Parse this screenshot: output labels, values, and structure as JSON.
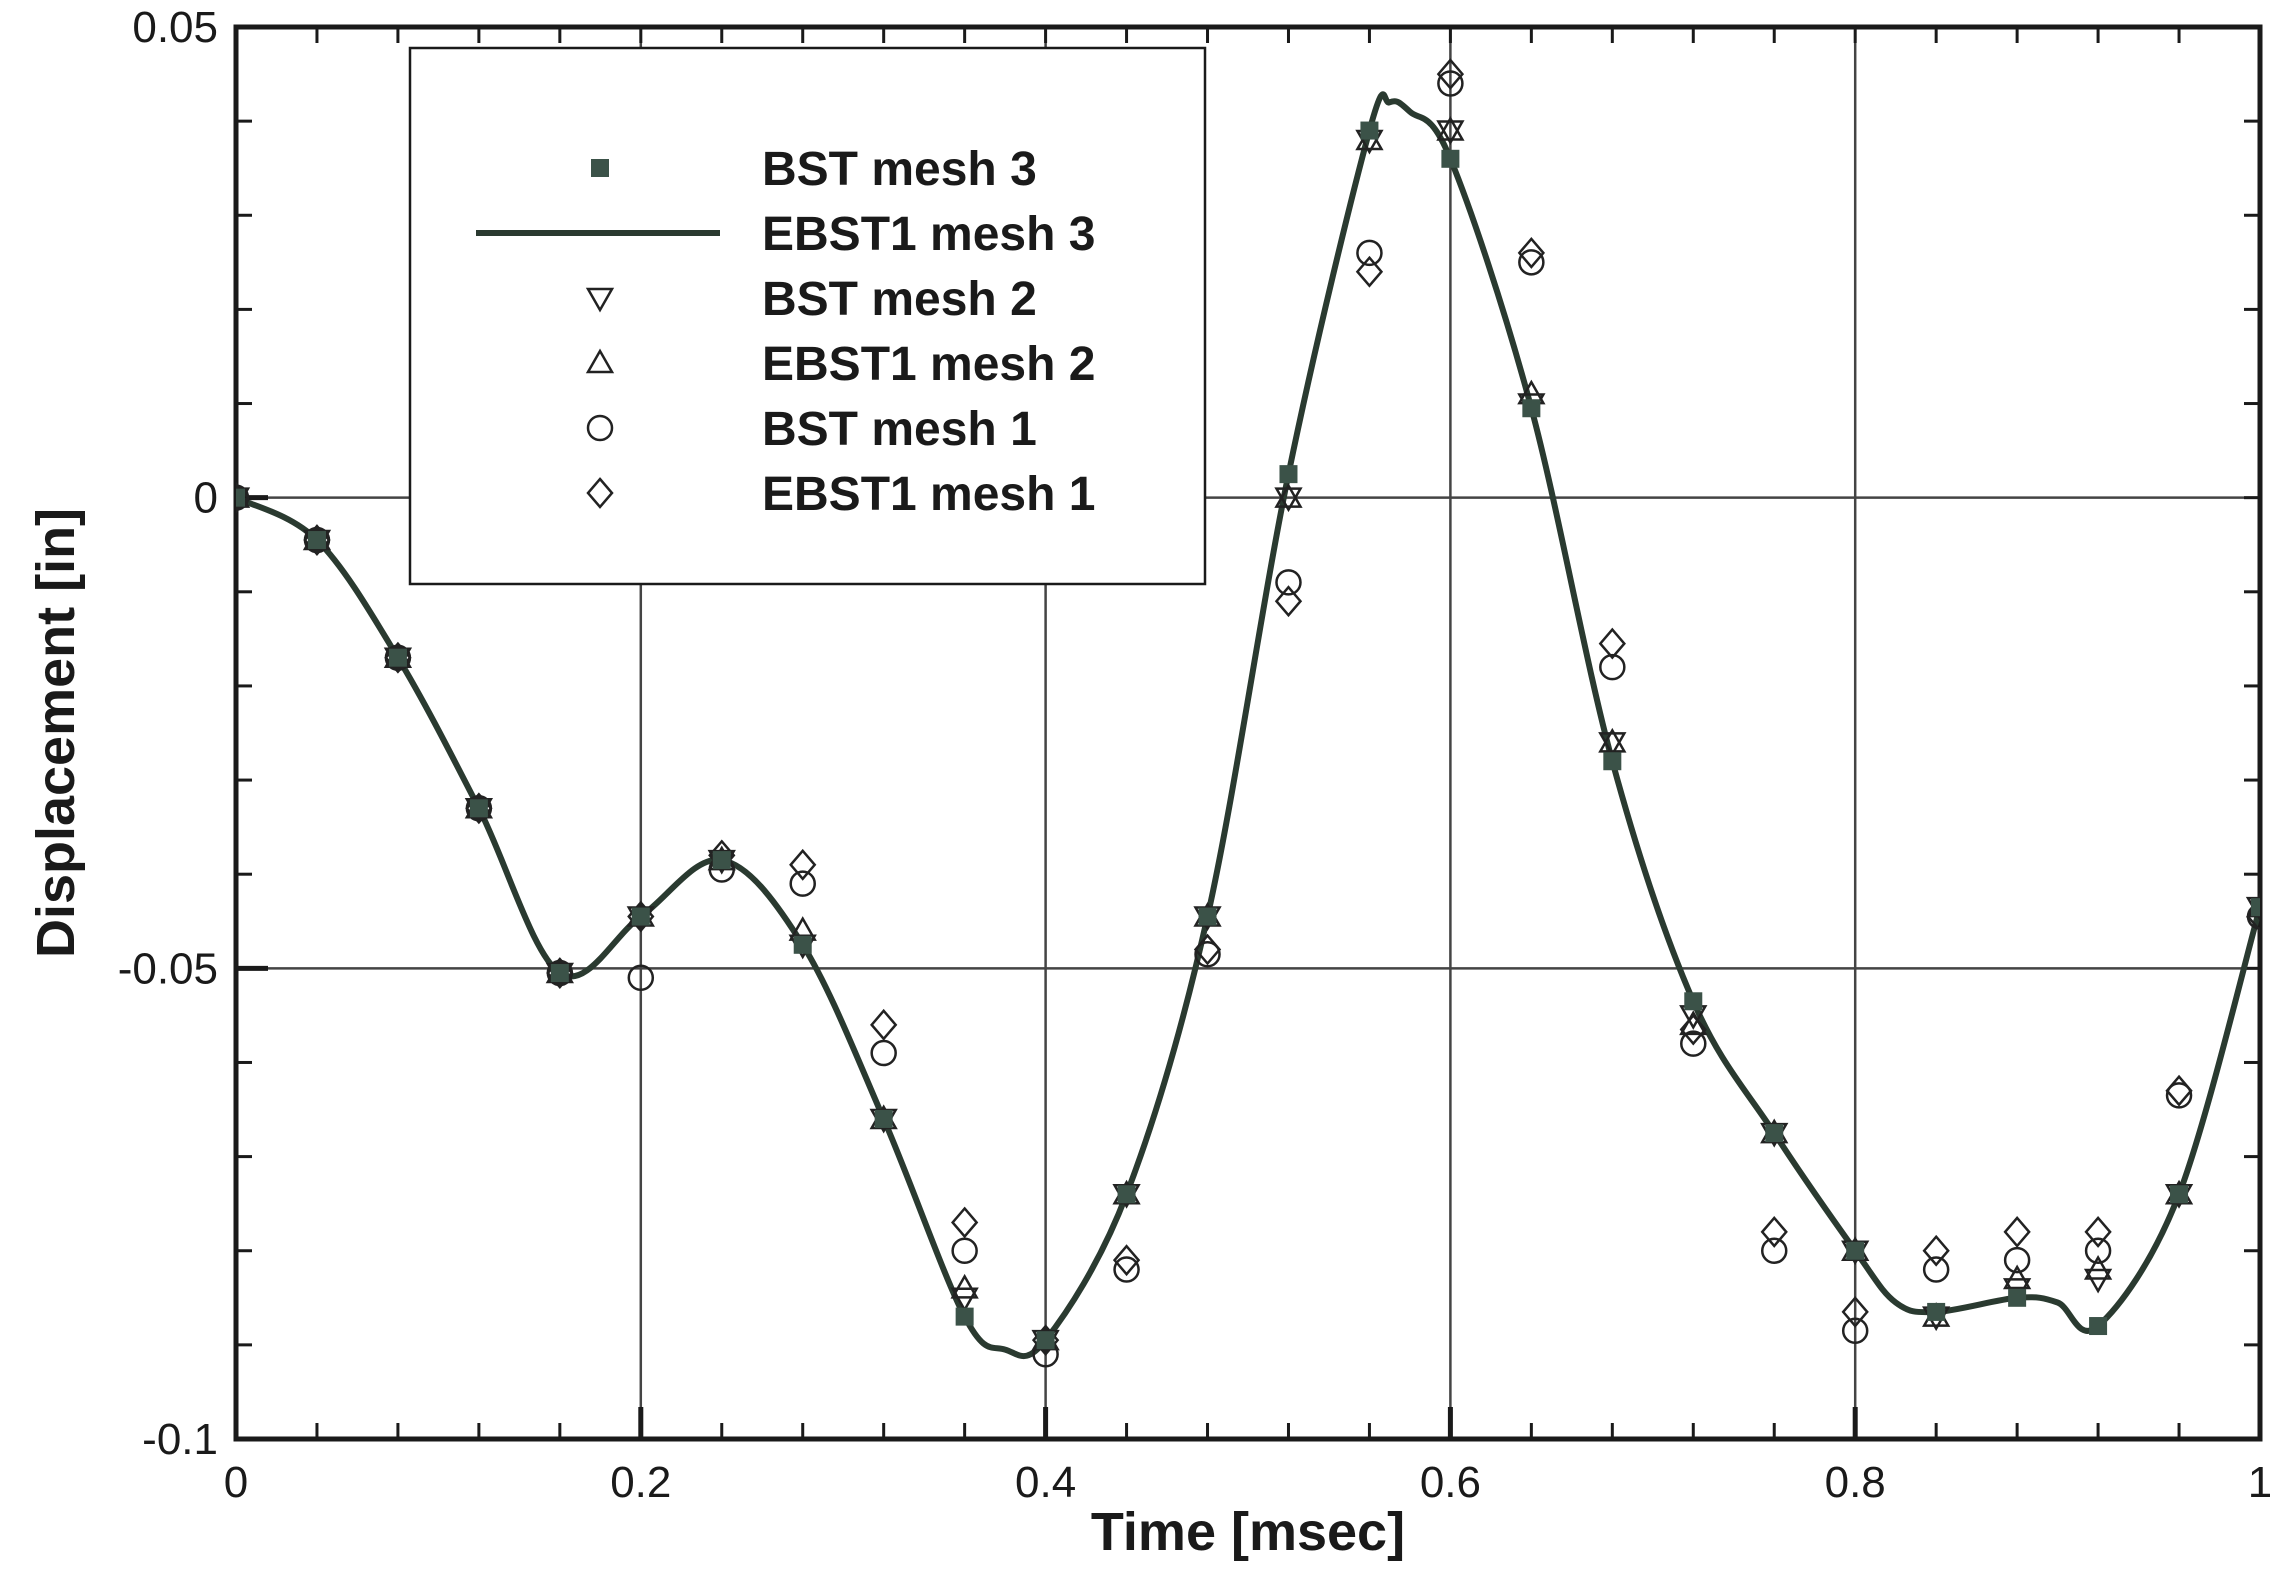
{
  "chart_data": {
    "type": "scatter",
    "xlabel": "Time [msec]",
    "ylabel": "Displacement [in]",
    "xlim": [
      0,
      1
    ],
    "ylim": [
      -0.1,
      0.05
    ],
    "x_ticks": [
      0,
      0.2,
      0.4,
      0.6,
      0.8,
      1
    ],
    "x_tick_labels": [
      "0",
      "0.2",
      "0.4",
      "0.6",
      "0.8",
      "1"
    ],
    "y_ticks": [
      -0.1,
      -0.05,
      0,
      0.05
    ],
    "y_tick_labels": [
      "-0.1",
      "-0.05",
      "0",
      "0.05"
    ],
    "x_minor_step": 0.04,
    "y_minor_step": 0.01,
    "grid": "major",
    "legend_position": "top-left (inside)",
    "colors": {
      "line": "#2a3a30",
      "filled_marker": "#3b5248",
      "hollow_marker": "#222222",
      "grid": "#444444"
    },
    "series": [
      {
        "name": "BST mesh 3",
        "marker": "filled-square",
        "x": [
          0,
          0.04,
          0.08,
          0.12,
          0.16,
          0.2,
          0.24,
          0.28,
          0.32,
          0.36,
          0.4,
          0.44,
          0.48,
          0.52,
          0.56,
          0.6,
          0.64,
          0.68,
          0.72,
          0.76,
          0.8,
          0.84,
          0.88,
          0.92,
          0.96,
          1.0
        ],
        "y": [
          0,
          -0.0045,
          -0.017,
          -0.033,
          -0.0505,
          -0.0445,
          -0.0385,
          -0.0475,
          -0.066,
          -0.087,
          -0.0895,
          -0.074,
          -0.0445,
          0.0025,
          0.039,
          0.036,
          0.0095,
          -0.028,
          -0.0535,
          -0.0675,
          -0.08,
          -0.0865,
          -0.085,
          -0.088,
          -0.074,
          -0.0435
        ]
      },
      {
        "name": "EBST1 mesh 3",
        "line": "solid",
        "x": [
          0,
          0.04,
          0.08,
          0.12,
          0.16,
          0.2,
          0.24,
          0.28,
          0.32,
          0.36,
          0.38,
          0.4,
          0.44,
          0.48,
          0.52,
          0.56,
          0.57,
          0.58,
          0.6,
          0.64,
          0.68,
          0.72,
          0.76,
          0.8,
          0.82,
          0.84,
          0.88,
          0.9,
          0.92,
          0.96,
          1.0
        ],
        "y": [
          0,
          -0.0045,
          -0.017,
          -0.033,
          -0.0505,
          -0.0445,
          -0.0385,
          -0.0475,
          -0.066,
          -0.087,
          -0.0905,
          -0.0895,
          -0.074,
          -0.0445,
          0.0025,
          0.039,
          0.042,
          0.041,
          0.036,
          0.0095,
          -0.028,
          -0.0535,
          -0.0675,
          -0.08,
          -0.0855,
          -0.0865,
          -0.085,
          -0.0855,
          -0.088,
          -0.074,
          -0.0435
        ]
      },
      {
        "name": "BST mesh 2",
        "marker": "hollow-triangle-down",
        "x": [
          0,
          0.04,
          0.08,
          0.12,
          0.16,
          0.2,
          0.24,
          0.28,
          0.32,
          0.36,
          0.4,
          0.44,
          0.48,
          0.52,
          0.56,
          0.6,
          0.64,
          0.68,
          0.72,
          0.76,
          0.8,
          0.84,
          0.88,
          0.92,
          0.96,
          1.0
        ],
        "y": [
          0,
          -0.0045,
          -0.017,
          -0.033,
          -0.0505,
          -0.0445,
          -0.0385,
          -0.0475,
          -0.066,
          -0.085,
          -0.0895,
          -0.074,
          -0.0445,
          0,
          0.038,
          0.039,
          0.01,
          -0.026,
          -0.055,
          -0.0675,
          -0.08,
          -0.087,
          -0.084,
          -0.083,
          -0.074,
          -0.0435
        ]
      },
      {
        "name": "EBST1 mesh 2",
        "marker": "hollow-triangle-up",
        "x": [
          0,
          0.04,
          0.08,
          0.12,
          0.16,
          0.2,
          0.24,
          0.28,
          0.32,
          0.36,
          0.4,
          0.44,
          0.48,
          0.52,
          0.56,
          0.6,
          0.64,
          0.68,
          0.72,
          0.76,
          0.8,
          0.84,
          0.88,
          0.92,
          0.96,
          1.0
        ],
        "y": [
          0,
          -0.0045,
          -0.017,
          -0.033,
          -0.0505,
          -0.0445,
          -0.0385,
          -0.046,
          -0.066,
          -0.084,
          -0.0895,
          -0.074,
          -0.0445,
          0,
          0.038,
          0.039,
          0.011,
          -0.026,
          -0.056,
          -0.0675,
          -0.08,
          -0.087,
          -0.083,
          -0.082,
          -0.074,
          -0.0435
        ]
      },
      {
        "name": "BST mesh 1",
        "marker": "hollow-circle",
        "x": [
          0,
          0.04,
          0.08,
          0.12,
          0.16,
          0.2,
          0.24,
          0.28,
          0.32,
          0.36,
          0.4,
          0.44,
          0.48,
          0.52,
          0.56,
          0.6,
          0.64,
          0.68,
          0.72,
          0.76,
          0.8,
          0.84,
          0.88,
          0.92,
          0.96,
          1.0
        ],
        "y": [
          0,
          -0.0045,
          -0.017,
          -0.033,
          -0.0505,
          -0.051,
          -0.0395,
          -0.041,
          -0.059,
          -0.08,
          -0.091,
          -0.082,
          -0.0485,
          -0.009,
          0.026,
          0.044,
          0.025,
          -0.018,
          -0.058,
          -0.08,
          -0.0885,
          -0.082,
          -0.081,
          -0.08,
          -0.0635,
          -0.0445
        ]
      },
      {
        "name": "EBST1 mesh 1",
        "marker": "hollow-diamond",
        "x": [
          0,
          0.04,
          0.08,
          0.12,
          0.16,
          0.2,
          0.24,
          0.28,
          0.32,
          0.36,
          0.4,
          0.44,
          0.48,
          0.52,
          0.56,
          0.6,
          0.64,
          0.68,
          0.72,
          0.76,
          0.8,
          0.84,
          0.88,
          0.92,
          0.96,
          1.0
        ],
        "y": [
          0,
          -0.0045,
          -0.017,
          -0.033,
          -0.0505,
          -0.0445,
          -0.038,
          -0.039,
          -0.056,
          -0.077,
          -0.0895,
          -0.081,
          -0.048,
          -0.011,
          0.024,
          0.045,
          0.026,
          -0.0155,
          -0.0565,
          -0.078,
          -0.0865,
          -0.08,
          -0.078,
          -0.078,
          -0.063,
          -0.0445
        ]
      }
    ]
  }
}
